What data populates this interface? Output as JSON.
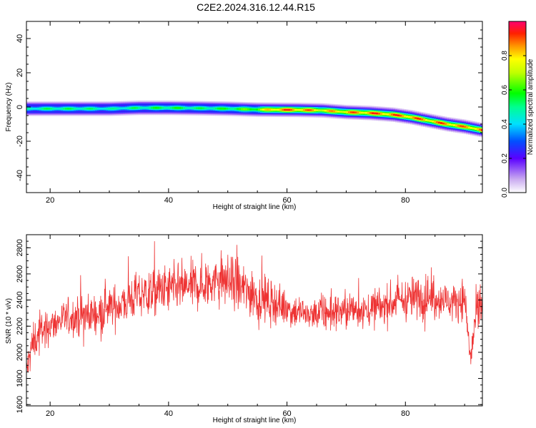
{
  "title": "C2E2.2024.316.12.44.R15",
  "chart_data": [
    {
      "type": "heatmap",
      "name": "spectrogram",
      "xlabel": "Height of straight line (km)",
      "ylabel": "Frequency (Hz)",
      "xlim": [
        16,
        93
      ],
      "ylim": [
        -50,
        50
      ],
      "xticks": [
        20,
        40,
        60,
        80
      ],
      "xtick_labels": [
        "20",
        "40",
        "60",
        "80"
      ],
      "yticks": [
        -40,
        -20,
        0,
        20,
        40
      ],
      "ytick_labels": [
        "-40",
        "-20",
        "0",
        "20",
        "40"
      ],
      "ridge": {
        "x": [
          16,
          20,
          25,
          30,
          35,
          40,
          45,
          50,
          55,
          58,
          62,
          66,
          70,
          74,
          78,
          81,
          84,
          87,
          90,
          93
        ],
        "freq": [
          -1,
          -1,
          -1,
          -1,
          -0.5,
          -0.5,
          -0.7,
          -1,
          -1.5,
          -1.6,
          -1.7,
          -2,
          -3,
          -3.5,
          -4.5,
          -6,
          -8,
          -10,
          -11.5,
          -13.5
        ],
        "peak_amplitude": [
          0.5,
          0.55,
          0.55,
          0.5,
          0.55,
          0.6,
          0.55,
          0.6,
          0.7,
          0.95,
          0.95,
          0.85,
          0.9,
          0.95,
          0.95,
          0.95,
          0.9,
          0.95,
          0.9,
          0.95
        ]
      },
      "colorbar": {
        "label": "Normalized spectral amplitude",
        "range": [
          0.0,
          1.0
        ],
        "ticks": [
          0.0,
          0.2,
          0.4,
          0.6,
          0.8
        ],
        "tick_labels": [
          "0.0",
          "0.2",
          "0.4",
          "0.6",
          "0.8"
        ]
      }
    },
    {
      "type": "line",
      "name": "snr",
      "xlabel": "Height of straight line (km)",
      "ylabel": "SNR (10 * v/v)",
      "xlim": [
        16,
        93
      ],
      "ylim": [
        1590,
        2900
      ],
      "xticks": [
        20,
        40,
        60,
        80
      ],
      "xtick_labels": [
        "20",
        "40",
        "60",
        "80"
      ],
      "yticks": [
        1600,
        1800,
        2000,
        2200,
        2400,
        2600,
        2800
      ],
      "ytick_labels": [
        "1600",
        "1800",
        "2000",
        "2200",
        "2400",
        "2600",
        "2800"
      ],
      "color": "#ee3333",
      "series": [
        {
          "name": "SNR",
          "x": [
            16,
            17,
            18,
            20,
            22,
            25,
            28,
            31,
            34,
            37,
            40,
            43,
            46,
            49,
            52,
            55,
            58,
            61,
            64,
            67,
            70,
            73,
            76,
            79,
            82,
            85,
            88,
            90,
            91,
            92,
            93
          ],
          "value": [
            1850,
            2050,
            2150,
            2200,
            2250,
            2280,
            2300,
            2350,
            2420,
            2460,
            2480,
            2500,
            2520,
            2560,
            2500,
            2420,
            2380,
            2320,
            2290,
            2300,
            2320,
            2330,
            2350,
            2400,
            2420,
            2420,
            2380,
            2420,
            1950,
            2300,
            2400
          ],
          "spread": [
            150,
            150,
            140,
            140,
            140,
            150,
            160,
            170,
            180,
            190,
            190,
            190,
            200,
            210,
            210,
            170,
            150,
            140,
            130,
            140,
            150,
            150,
            150,
            160,
            170,
            160,
            150,
            150,
            150,
            170,
            190
          ]
        }
      ]
    }
  ]
}
